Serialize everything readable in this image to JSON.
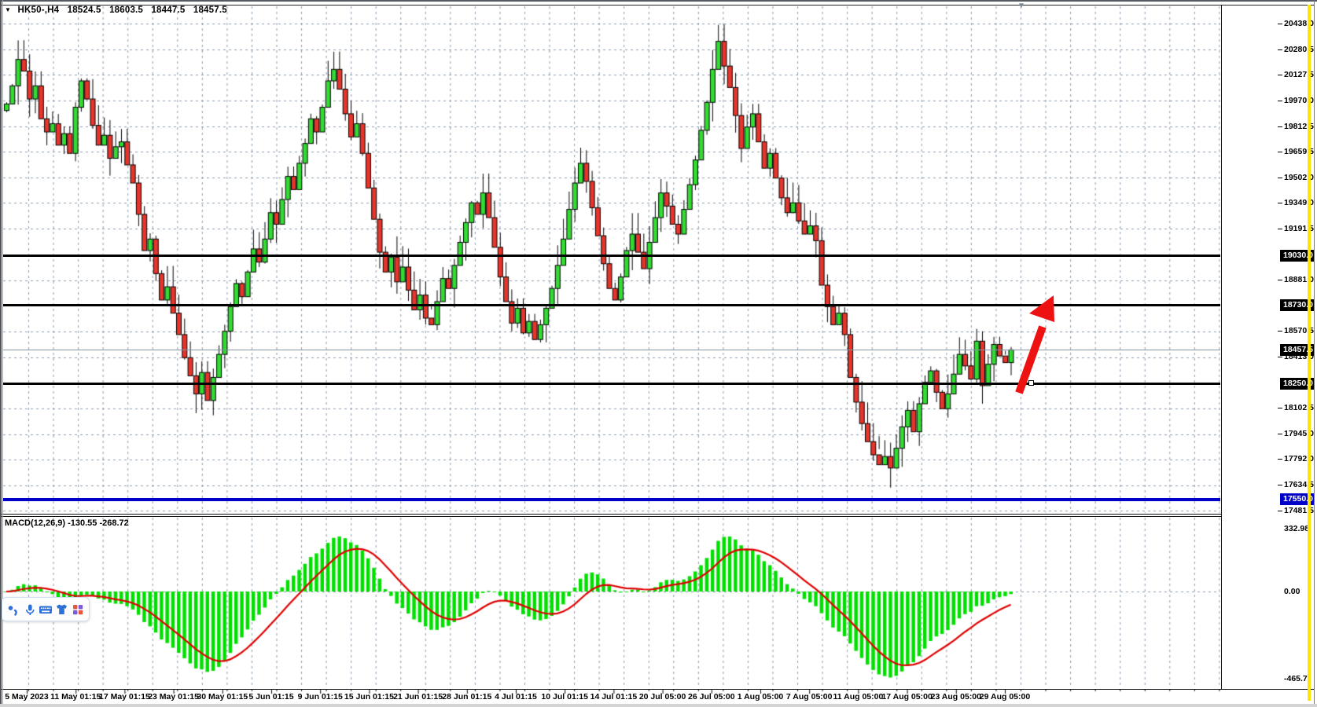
{
  "header": {
    "dropdown_icon": "▼",
    "symbol": "HK50-,H4",
    "open": "18524.5",
    "high": "18603.5",
    "low": "18447.5",
    "close": "18457.5"
  },
  "macd_title": "MACD(12,26,9) -130.55 -268.72",
  "price_axis": {
    "plain_ticks": [
      "20438.0",
      "20280.5",
      "20127.5",
      "19970.0",
      "19812.5",
      "19659.5",
      "19502.0",
      "19349.0",
      "19191.5",
      "18881.0",
      "18570.5",
      "18413.0",
      "18102.5",
      "17945.0",
      "17792.0",
      "17634.5",
      "17481.5"
    ],
    "badges": [
      {
        "label": "19030.0",
        "price": 19030.0,
        "bg": "#000000"
      },
      {
        "label": "18730.0",
        "price": 18730.0,
        "bg": "#000000"
      },
      {
        "label": "18457.5",
        "price": 18457.5,
        "bg": "#000000"
      },
      {
        "label": "18250.0",
        "price": 18250.0,
        "bg": "#000000"
      },
      {
        "label": "17550.0",
        "price": 17550.0,
        "bg": "#0000c8"
      }
    ]
  },
  "macd_axis": [
    {
      "label": "332.98",
      "value": 332.98
    },
    {
      "label": "0.00",
      "value": 0.0
    },
    {
      "label": "-465.7",
      "value": -465.7
    }
  ],
  "toolbar_icons": [
    "pen",
    "microphone",
    "keyboard",
    "shirt",
    "apps-grid"
  ],
  "colors": {
    "bull": "#33db33",
    "bear": "#e8352b",
    "candle_outline": "#000000",
    "grid": "#8b99ab",
    "histogram": "#00e000",
    "signal": "#e00000",
    "level_black": "#000000",
    "level_blue": "#0000c8",
    "current_price_line": "#8596a6",
    "arrow": "#ee1111",
    "yellow_line": "#ffe400"
  },
  "chart_data": {
    "type": "candlestick",
    "title": "HK50-,H4",
    "ohlc_header": {
      "open": 18524.5,
      "high": 18603.5,
      "low": 18447.5,
      "close": 18457.5
    },
    "y_range": [
      17481.5,
      20438.0
    ],
    "x_tick_labels": [
      "5 May 2023",
      "11 May 01:15",
      "17 May 01:15",
      "23 May 01:15",
      "30 May 01:15",
      "5 Jun 01:15",
      "9 Jun 01:15",
      "15 Jun 01:15",
      "21 Jun 01:15",
      "28 Jun 01:15",
      "4 Jul 01:15",
      "10 Jul 01:15",
      "14 Jul 01:15",
      "20 Jul 05:00",
      "26 Jul 05:00",
      "1 Aug 05:00",
      "7 Aug 05:00",
      "11 Aug 05:00",
      "17 Aug 05:00",
      "23 Aug 05:00",
      "29 Aug 05:00"
    ],
    "closes": [
      19950,
      20060,
      20220,
      20150,
      19980,
      20060,
      19860,
      19780,
      19830,
      19700,
      19770,
      19650,
      19930,
      20090,
      19980,
      19820,
      19700,
      19760,
      19620,
      19690,
      19720,
      19580,
      19470,
      19280,
      19060,
      19130,
      18920,
      18760,
      18840,
      18680,
      18550,
      18410,
      18300,
      18190,
      18320,
      18150,
      18290,
      18430,
      18570,
      18720,
      18860,
      18780,
      18930,
      19070,
      18990,
      19130,
      19290,
      19220,
      19370,
      19510,
      19430,
      19590,
      19710,
      19860,
      19780,
      19930,
      20090,
      20160,
      20040,
      19890,
      19750,
      19830,
      19650,
      19440,
      19250,
      19050,
      18930,
      19020,
      18870,
      18960,
      18820,
      18700,
      18790,
      18650,
      18610,
      18750,
      18890,
      18830,
      18970,
      19110,
      19230,
      19350,
      19280,
      19410,
      19260,
      19080,
      18900,
      18750,
      18620,
      18710,
      18560,
      18630,
      18520,
      18610,
      18710,
      18830,
      18970,
      19130,
      19310,
      19470,
      19590,
      19480,
      19320,
      19150,
      18980,
      18830,
      18760,
      18900,
      19060,
      19160,
      19050,
      18950,
      19110,
      19260,
      19410,
      19330,
      19220,
      19160,
      19310,
      19460,
      19610,
      19790,
      19960,
      20160,
      20330,
      20180,
      20050,
      19880,
      19680,
      19810,
      19890,
      19720,
      19560,
      19650,
      19500,
      19380,
      19290,
      19350,
      19240,
      19160,
      19210,
      19120,
      18850,
      18720,
      18610,
      18680,
      18550,
      18290,
      18140,
      18010,
      17900,
      17820,
      17760,
      17810,
      17740,
      17860,
      17990,
      18090,
      17960,
      18130,
      18260,
      18330,
      18200,
      18100,
      18190,
      18310,
      18430,
      18360,
      18280,
      18510,
      18240,
      18370,
      18490,
      18420,
      18380,
      18457.5
    ],
    "levels": [
      {
        "price": 19030.0,
        "color": "#000000",
        "style": "solid"
      },
      {
        "price": 18730.0,
        "color": "#000000",
        "style": "solid"
      },
      {
        "price": 18250.0,
        "color": "#000000",
        "style": "solid"
      },
      {
        "price": 17550.0,
        "color": "#0000c8",
        "style": "solid"
      }
    ],
    "current_price": 18457.5,
    "annotation_arrow": {
      "direction": "up",
      "from_price": 18230,
      "to_price": 18760,
      "color": "#ee1111"
    },
    "macd": {
      "type": "histogram+signal",
      "params": [
        12,
        26,
        9
      ],
      "last_macd": -130.55,
      "last_signal": -268.72,
      "axis_max": 332.98,
      "axis_min": -465.7
    }
  }
}
